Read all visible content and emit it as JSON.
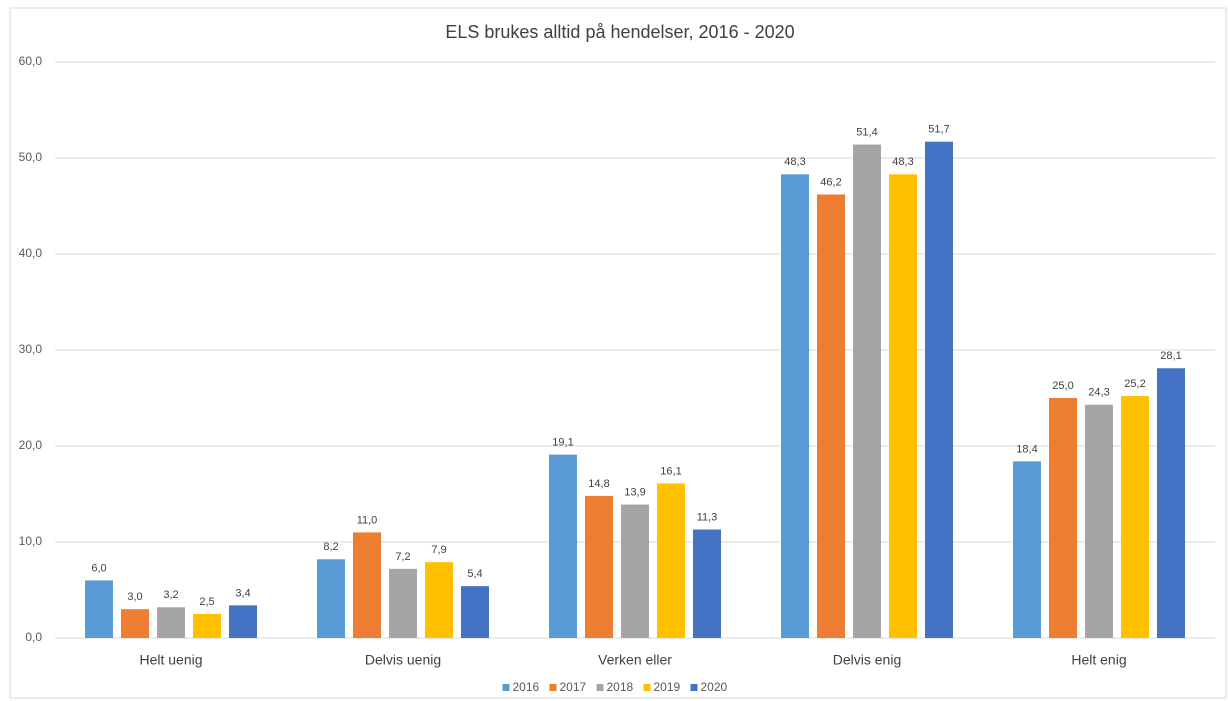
{
  "chart_data": {
    "type": "bar",
    "title": "ELS brukes alltid på hendelser, 2016 -  2020",
    "categories": [
      "Helt uenig",
      "Delvis uenig",
      "Verken eller",
      "Delvis enig",
      "Helt enig"
    ],
    "series": [
      {
        "name": "2016",
        "color": "#5b9bd5",
        "values": [
          6.0,
          8.2,
          19.1,
          48.3,
          18.4
        ],
        "value_labels": [
          "6,0",
          "8,2",
          "19,1",
          "48,3",
          "18,4"
        ]
      },
      {
        "name": "2017",
        "color": "#ed7d31",
        "values": [
          3.0,
          11.0,
          14.8,
          46.2,
          25.0
        ],
        "value_labels": [
          "3,0",
          "11,0",
          "14,8",
          "46,2",
          "25,0"
        ]
      },
      {
        "name": "2018",
        "color": "#a5a5a5",
        "values": [
          3.2,
          7.2,
          13.9,
          51.4,
          24.3
        ],
        "value_labels": [
          "3,2",
          "7,2",
          "13,9",
          "51,4",
          "24,3"
        ]
      },
      {
        "name": "2019",
        "color": "#ffc000",
        "values": [
          2.5,
          7.9,
          16.1,
          48.3,
          25.2
        ],
        "value_labels": [
          "2,5",
          "7,9",
          "16,1",
          "48,3",
          "25,2"
        ]
      },
      {
        "name": "2020",
        "color": "#4472c4",
        "values": [
          3.4,
          5.4,
          11.3,
          51.7,
          28.1
        ],
        "value_labels": [
          "3,4",
          "5,4",
          "11,3",
          "51,7",
          "28,1"
        ]
      }
    ],
    "ylim": [
      0,
      60
    ],
    "yticks": [
      {
        "value": 0,
        "label": "0,0"
      },
      {
        "value": 10,
        "label": "10,0"
      },
      {
        "value": 20,
        "label": "20,0"
      },
      {
        "value": 30,
        "label": "30,0"
      },
      {
        "value": 40,
        "label": "40,0"
      },
      {
        "value": 50,
        "label": "50,0"
      },
      {
        "value": 60,
        "label": "60,0"
      }
    ],
    "grid": true,
    "legend": "bottom"
  }
}
